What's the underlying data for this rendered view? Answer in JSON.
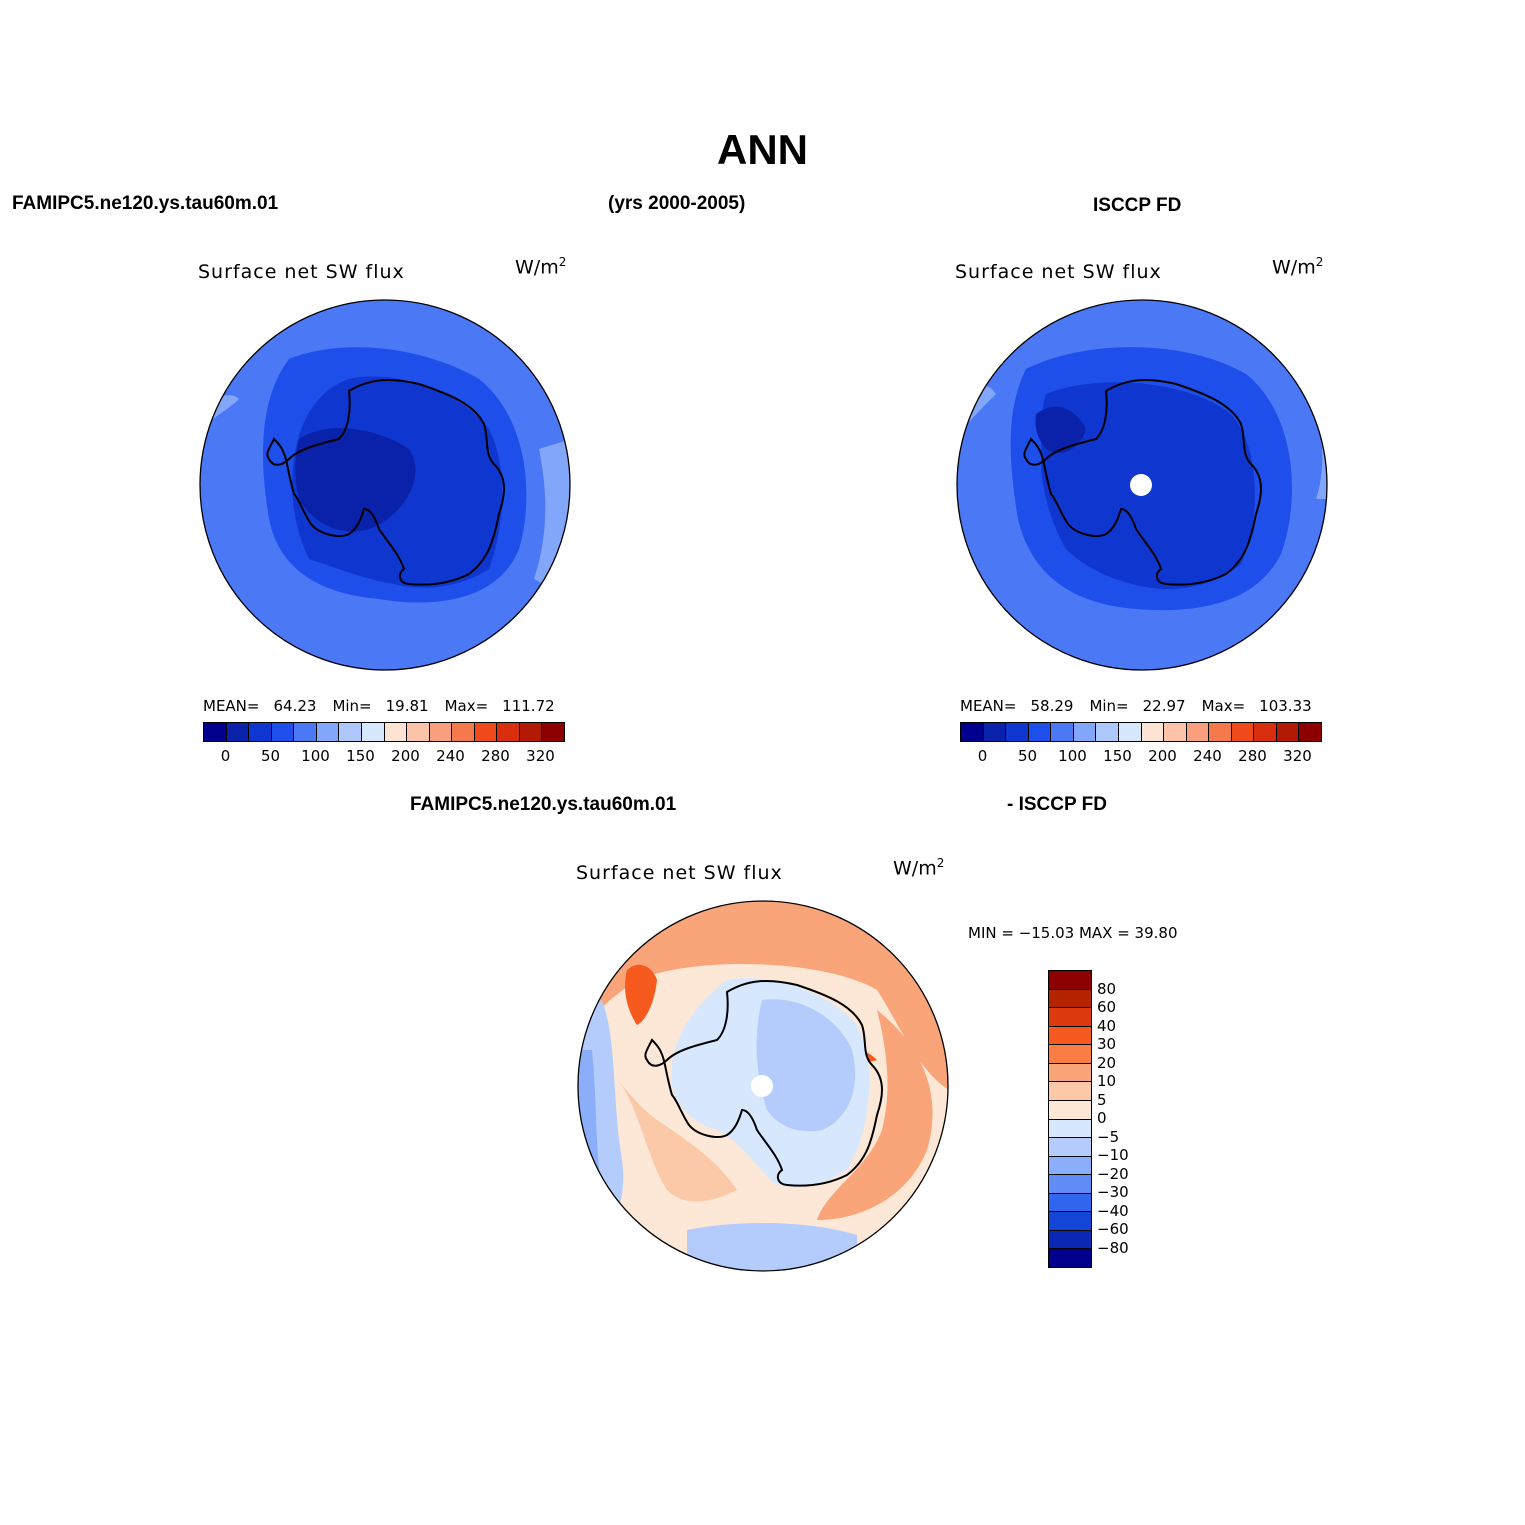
{
  "main_title": "ANN",
  "header": {
    "model_name": "FAMIPC5.ne120.ys.tau60m.01",
    "years": "(yrs 2000-2005)",
    "obs_name": "ISCCP FD"
  },
  "panels": {
    "model": {
      "title": "Surface net SW flux",
      "units": "W/m",
      "units_sup": "2",
      "mean_label": "MEAN=",
      "mean_value": "64.23",
      "min_label": "Min=",
      "min_value": "19.81",
      "max_label": "Max=",
      "max_value": "111.72"
    },
    "obs": {
      "title": "Surface net SW flux",
      "units": "W/m",
      "units_sup": "2",
      "mean_label": "MEAN=",
      "mean_value": "58.29",
      "min_label": "Min=",
      "min_value": "22.97",
      "max_label": "Max=",
      "max_value": "103.33"
    },
    "diff": {
      "header_left": "FAMIPC5.ne120.ys.tau60m.01",
      "header_right": "- ISCCP FD",
      "title": "Surface net SW flux",
      "units": "W/m",
      "units_sup": "2",
      "minmax": "MIN = −15.03 MAX =   39.80"
    }
  },
  "colorbar_main": {
    "colors": [
      "#00008C",
      "#0A22AA",
      "#0F37CF",
      "#1E4FEB",
      "#4B78F5",
      "#82A6FA",
      "#AFC8FC",
      "#D7E8FE",
      "#FDE4D2",
      "#FBC4A8",
      "#F99F7E",
      "#F4794C",
      "#EF4A1C",
      "#D92E0D",
      "#B31A05",
      "#8C0000"
    ],
    "labels": [
      "0",
      "50",
      "100",
      "150",
      "200",
      "240",
      "280",
      "320"
    ]
  },
  "colorbar_diff": {
    "colors": [
      "#8C0000",
      "#B52400",
      "#DC3A0C",
      "#F65A1E",
      "#FA7D44",
      "#FAA47A",
      "#FCC9A8",
      "#FDE7D6",
      "#D7E8FE",
      "#B4CCFC",
      "#8AAEFA",
      "#5F8DF5",
      "#3165EE",
      "#1346D6",
      "#0A28B4",
      "#00008C"
    ],
    "labels": [
      "80",
      "60",
      "40",
      "30",
      "20",
      "10",
      "5",
      "0",
      "−5",
      "−10",
      "−20",
      "−30",
      "−40",
      "−60",
      "−80"
    ]
  }
}
